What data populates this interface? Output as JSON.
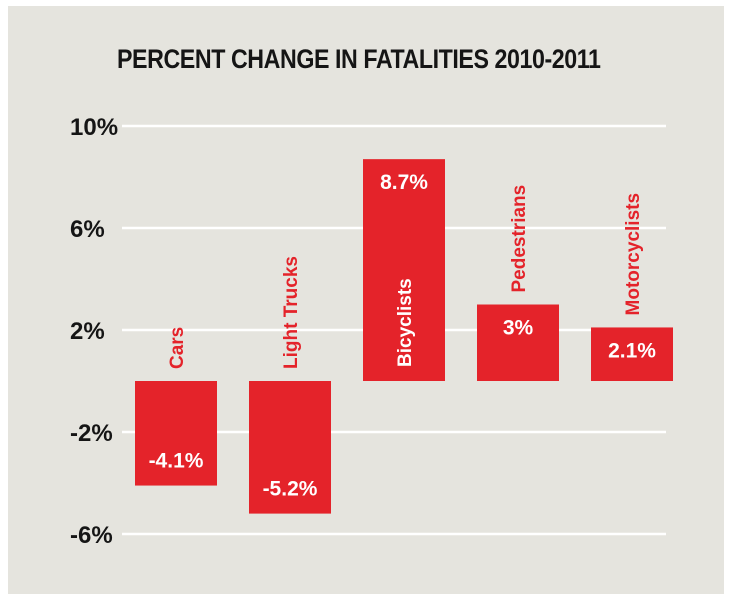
{
  "chart_data": {
    "type": "bar",
    "title": "PERCENT CHANGE IN FATALITIES 2010-2011",
    "categories": [
      "Cars",
      "Light Trucks",
      "Bicyclists",
      "Pedestrians",
      "Motorcyclists"
    ],
    "values": [
      -4.1,
      -5.2,
      8.7,
      3,
      2.1
    ],
    "value_labels": [
      "-4.1%",
      "-5.2%",
      "8.7%",
      "3%",
      "2.1%"
    ],
    "yticks": [
      10,
      6,
      2,
      -2,
      -6
    ],
    "ytick_labels": [
      "10%",
      "6%",
      "2%",
      "-2%",
      "-6%"
    ],
    "ylim": [
      -6,
      10
    ],
    "grid": true,
    "xlabel": "",
    "ylabel": "",
    "colors": {
      "bar": "#e4232a",
      "category_label": "#e4232a",
      "value_label": "#ffffff",
      "grid": "#ffffff",
      "background": "#e5e4de"
    }
  }
}
